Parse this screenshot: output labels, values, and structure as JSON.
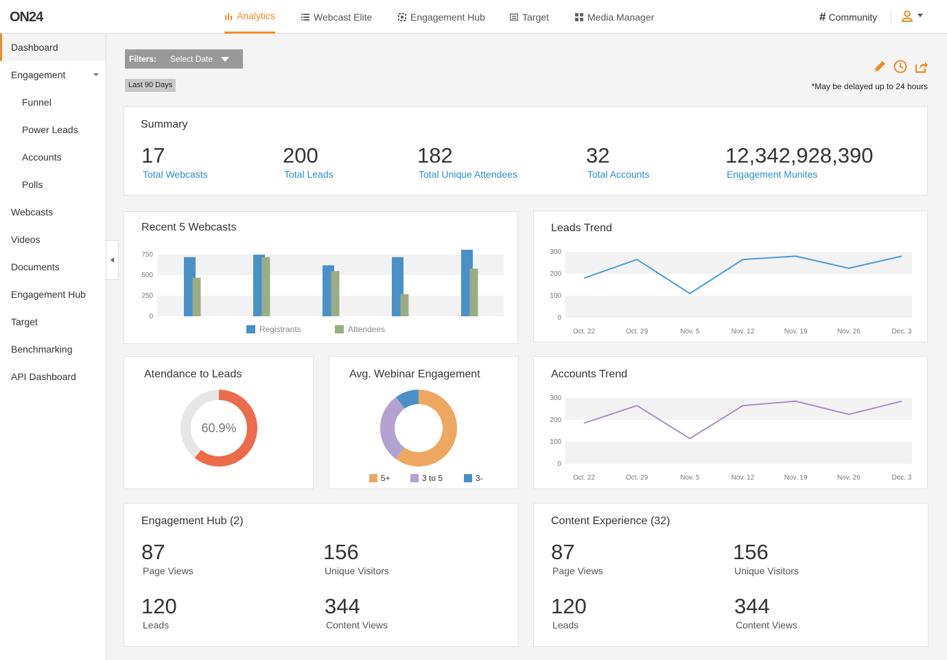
{
  "brand": {
    "logo_text": "ON24",
    "accent": "#f08a24",
    "link_color": "#2a8ec4"
  },
  "topnav": {
    "items": [
      {
        "label": "Analytics",
        "icon": "bar-chart-icon",
        "active": true
      },
      {
        "label": "Webcast Elite",
        "icon": "list-icon"
      },
      {
        "label": "Engagement Hub",
        "icon": "hub-icon"
      },
      {
        "label": "Target",
        "icon": "target-icon"
      },
      {
        "label": "Media Manager",
        "icon": "grid-icon"
      }
    ],
    "community_label": "Community",
    "community_icon": "hash-icon",
    "user_icon": "user-icon"
  },
  "sidebar": {
    "items": [
      {
        "label": "Dashboard",
        "active": true
      },
      {
        "label": "Engagement",
        "expandable": true
      },
      {
        "label": "Funnel",
        "sub": true
      },
      {
        "label": "Power Leads",
        "sub": true
      },
      {
        "label": "Accounts",
        "sub": true
      },
      {
        "label": "Polls",
        "sub": true
      },
      {
        "label": "Webcasts"
      },
      {
        "label": "Videos"
      },
      {
        "label": "Documents"
      },
      {
        "label": "Engagement Hub"
      },
      {
        "label": "Target"
      },
      {
        "label": "Benchmarking"
      },
      {
        "label": "API Dashboard"
      }
    ]
  },
  "filters": {
    "label": "Filters:",
    "select_label": "Select Date",
    "active_range": "Last 90 Days"
  },
  "toolbar": {
    "icons": [
      "edit-icon",
      "clock-icon",
      "share-icon"
    ],
    "delay_note": "*May be delayed up to 24 hours"
  },
  "summary": {
    "title": "Summary",
    "stats": [
      {
        "value": "17",
        "label": "Total Webcasts"
      },
      {
        "value": "200",
        "label": "Total Leads"
      },
      {
        "value": "182",
        "label": "Total Unique Attendees"
      },
      {
        "value": "32",
        "label": "Total Accounts"
      },
      {
        "value": "12,342,928,390",
        "label": "Engagement Munites"
      }
    ]
  },
  "cards": {
    "recent_webcasts_title": "Recent 5 Webcasts",
    "leads_trend_title": "Leads Trend",
    "attendance_title": "Atendance to Leads",
    "engagement_title": "Avg. Webinar Engagement",
    "accounts_trend_title": "Accounts Trend"
  },
  "engagement_hub": {
    "title": "Engagement Hub (2)",
    "stats": [
      {
        "value": "87",
        "label": "Page Views"
      },
      {
        "value": "156",
        "label": "Unique Visitors"
      },
      {
        "value": "120",
        "label": "Leads"
      },
      {
        "value": "344",
        "label": "Content Views"
      }
    ]
  },
  "content_experience": {
    "title": "Content Experience (32)",
    "stats": [
      {
        "value": "87",
        "label": "Page Views"
      },
      {
        "value": "156",
        "label": "Unique Visitors"
      },
      {
        "value": "120",
        "label": "Leads"
      },
      {
        "value": "344",
        "label": "Content Views"
      }
    ]
  },
  "chart_data": [
    {
      "id": "recent_webcasts",
      "type": "bar",
      "title": "Recent 5 Webcasts",
      "categories": [
        "",
        "",
        "",
        "",
        ""
      ],
      "series": [
        {
          "name": "Registrants",
          "color": "#4a90c8",
          "values": [
            720,
            750,
            620,
            720,
            810
          ]
        },
        {
          "name": "Attendees",
          "color": "#9aad82",
          "values": [
            470,
            720,
            550,
            270,
            580
          ]
        }
      ],
      "y_ticks": [
        0,
        250,
        500,
        750
      ],
      "ylim": [
        0,
        810
      ],
      "grid": true,
      "legend": "bottom"
    },
    {
      "id": "leads_trend",
      "type": "line",
      "title": "Leads Trend",
      "x": [
        "Oct. 22",
        "Oct. 29",
        "Nov. 5",
        "Nov. 12",
        "Nov. 19",
        "Nov. 26",
        "Dec. 3"
      ],
      "series": [
        {
          "color": "#4a9bd1",
          "values": [
            180,
            265,
            110,
            265,
            280,
            225,
            280
          ]
        }
      ],
      "y_ticks": [
        0,
        100,
        200,
        300
      ],
      "ylim": [
        0,
        300
      ],
      "grid": true
    },
    {
      "id": "attendance_to_leads",
      "type": "pie",
      "title": "Atendance to Leads",
      "center_label": "60.9%",
      "slices": [
        {
          "value": 60.9,
          "color": "#ec6b4a"
        },
        {
          "value": 39.1,
          "color": "#e6e6e6"
        }
      ]
    },
    {
      "id": "avg_webinar_engagement",
      "type": "pie",
      "title": "Avg. Webinar Engagement",
      "slices": [
        {
          "name": "5+",
          "value": 60,
          "color": "#eca860"
        },
        {
          "name": "3 to 5",
          "value": 30,
          "color": "#b3a2cf"
        },
        {
          "name": "3-",
          "value": 10,
          "color": "#4a90c8"
        }
      ],
      "legend": "bottom"
    },
    {
      "id": "accounts_trend",
      "type": "line",
      "title": "Accounts Trend",
      "x": [
        "Oct. 22",
        "Oct. 29",
        "Nov. 5",
        "Nov. 12",
        "Nov. 19",
        "Nov. 26",
        "Dec. 3"
      ],
      "series": [
        {
          "color": "#a98cc6",
          "values": [
            185,
            265,
            115,
            265,
            285,
            225,
            285
          ]
        }
      ],
      "y_ticks": [
        0,
        100,
        200,
        300
      ],
      "ylim": [
        0,
        300
      ],
      "grid": true
    }
  ]
}
